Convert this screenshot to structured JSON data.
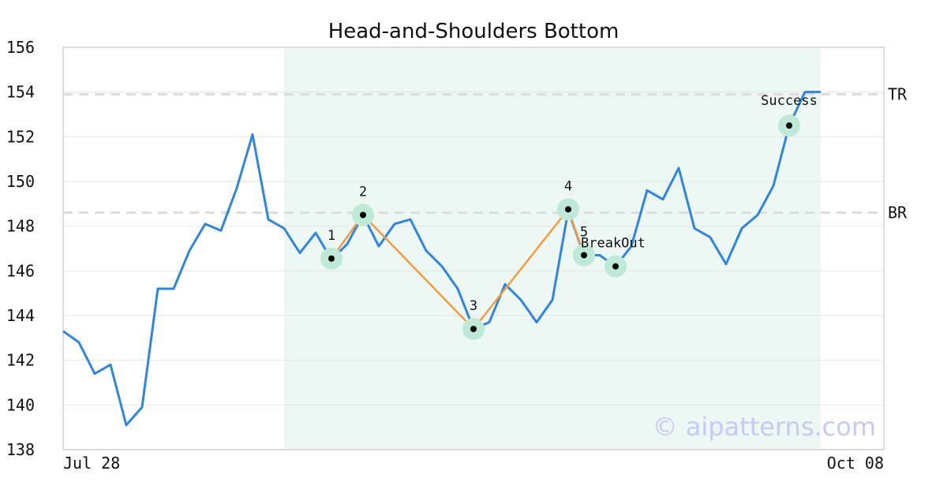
{
  "chart_data": {
    "type": "line",
    "title": "Head-and-Shoulders Bottom",
    "xlabel": "",
    "ylabel": "",
    "ylim": [
      138,
      156
    ],
    "yticks": [
      138,
      140,
      142,
      144,
      146,
      148,
      150,
      152,
      154,
      156
    ],
    "x_tick_labels": [
      "Jul 28",
      "Oct 08"
    ],
    "grid": true,
    "series": [
      {
        "values": [
          143.3,
          142.8,
          141.4,
          141.8,
          139.1,
          139.9,
          145.2,
          145.2,
          146.9,
          148.1,
          147.8,
          149.7,
          152.1,
          148.3,
          147.9,
          146.8,
          147.7,
          146.5,
          147.2,
          148.5,
          147.1,
          148.1,
          148.3,
          146.9,
          146.2,
          145.2,
          143.4,
          143.7,
          145.4,
          144.7,
          143.7,
          144.7,
          148.7,
          146.7,
          146.7,
          146.2,
          147.1,
          149.6,
          149.2,
          150.6,
          147.9,
          147.5,
          146.3,
          147.9,
          148.5,
          149.8,
          152.5,
          154.0,
          154.0
        ]
      }
    ],
    "pattern_range": [
      15,
      48
    ],
    "pattern_points": [
      {
        "label": "1",
        "x": 17,
        "y": 146.55
      },
      {
        "label": "2",
        "x": 19,
        "y": 148.5
      },
      {
        "label": "3",
        "x": 26,
        "y": 143.4
      },
      {
        "label": "4",
        "x": 32,
        "y": 148.75
      },
      {
        "label": "5",
        "x": 33,
        "y": 146.7
      }
    ],
    "breakout": {
      "label": "BreakOut",
      "x": 35,
      "y": 146.2
    },
    "success": {
      "label": "Success",
      "x": 46,
      "y": 152.5
    },
    "reference_lines": [
      {
        "label": "TR",
        "y": 153.9
      },
      {
        "label": "BR",
        "y": 148.6
      }
    ],
    "colors": {
      "line": "#2e86de",
      "pattern": "#f39c40",
      "highlight": "#edf7f3",
      "marker_ring": "#bde9d6",
      "reference": "#dddddd",
      "grid": "#e6e6e6"
    }
  },
  "watermark": "© aipatterns.com"
}
